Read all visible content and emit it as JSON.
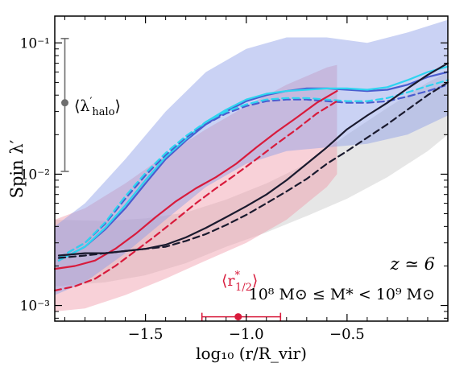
{
  "chart_data": {
    "type": "line",
    "ylabel": "Spin λ′",
    "xlabel": "log₁₀ (r/R_vir)",
    "y_scale": "log",
    "xlim": [
      -1.95,
      0.0
    ],
    "ylim": [
      0.00076,
      0.16
    ],
    "x_ticks": [
      -1.5,
      -1.0,
      -0.5
    ],
    "x_tick_labels": [
      "−1.5",
      "−1.0",
      "−0.5"
    ],
    "y_ticks": [
      0.001,
      0.01,
      0.1
    ],
    "y_tick_labels": [
      "10⁻³",
      "10⁻²",
      "10⁻¹"
    ],
    "grid": false,
    "colors": {
      "blue": "#4a5ccf",
      "cyan": "#2ed4f0",
      "red": "#d81b3c",
      "black": "#1a1a2e",
      "blue_band": "#8a9be6",
      "red_band": "#f09aa8",
      "gray_band": "#c8c8c8",
      "marker_gray": "#6e6e6e"
    },
    "bands": [
      {
        "color_key": "gray_band",
        "x": [
          -1.95,
          -1.7,
          -1.5,
          -1.3,
          -1.1,
          -0.9,
          -0.7,
          -0.5,
          -0.3,
          -0.1,
          0.0
        ],
        "lower": [
          0.0014,
          0.0015,
          0.0017,
          0.0021,
          0.0028,
          0.0036,
          0.0048,
          0.0065,
          0.0095,
          0.015,
          0.02
        ],
        "upper": [
          0.0045,
          0.0044,
          0.0046,
          0.0051,
          0.0064,
          0.0085,
          0.012,
          0.02,
          0.032,
          0.05,
          0.06
        ]
      },
      {
        "color_key": "red_band",
        "x": [
          -1.95,
          -1.8,
          -1.6,
          -1.4,
          -1.2,
          -1.0,
          -0.8,
          -0.6,
          -0.55
        ],
        "lower": [
          0.0009,
          0.00095,
          0.0012,
          0.0016,
          0.0022,
          0.003,
          0.0045,
          0.008,
          0.01
        ],
        "upper": [
          0.0045,
          0.0055,
          0.0085,
          0.014,
          0.022,
          0.033,
          0.048,
          0.065,
          0.068
        ]
      },
      {
        "color_key": "blue_band",
        "x": [
          -1.95,
          -1.8,
          -1.6,
          -1.4,
          -1.2,
          -1.0,
          -0.8,
          -0.6,
          -0.4,
          -0.2,
          0.0
        ],
        "lower": [
          0.0012,
          0.0015,
          0.0025,
          0.0045,
          0.008,
          0.012,
          0.015,
          0.016,
          0.017,
          0.02,
          0.028
        ],
        "upper": [
          0.004,
          0.006,
          0.013,
          0.03,
          0.06,
          0.09,
          0.11,
          0.11,
          0.1,
          0.12,
          0.15
        ]
      }
    ],
    "series": [
      {
        "color_key": "blue",
        "dash": "solid",
        "x": [
          -1.93,
          -1.8,
          -1.7,
          -1.6,
          -1.5,
          -1.4,
          -1.3,
          -1.2,
          -1.1,
          -1.0,
          -0.9,
          -0.8,
          -0.7,
          -0.6,
          -0.5,
          -0.4,
          -0.3,
          -0.2,
          -0.1,
          0.0
        ],
        "y": [
          0.0022,
          0.0028,
          0.0038,
          0.0055,
          0.0085,
          0.013,
          0.018,
          0.024,
          0.03,
          0.036,
          0.04,
          0.043,
          0.045,
          0.045,
          0.044,
          0.043,
          0.044,
          0.048,
          0.055,
          0.06
        ]
      },
      {
        "color_key": "cyan",
        "dash": "solid",
        "x": [
          -1.93,
          -1.8,
          -1.7,
          -1.6,
          -1.5,
          -1.4,
          -1.3,
          -1.2,
          -1.1,
          -1.0,
          -0.9,
          -0.8,
          -0.7,
          -0.6,
          -0.5,
          -0.4,
          -0.3,
          -0.2,
          -0.1,
          0.0
        ],
        "y": [
          0.0022,
          0.0028,
          0.0039,
          0.0058,
          0.009,
          0.0135,
          0.0185,
          0.025,
          0.031,
          0.037,
          0.041,
          0.043,
          0.044,
          0.045,
          0.045,
          0.044,
          0.046,
          0.052,
          0.06,
          0.066
        ]
      },
      {
        "color_key": "blue",
        "dash": "dashed",
        "x": [
          -1.93,
          -1.8,
          -1.7,
          -1.6,
          -1.5,
          -1.4,
          -1.3,
          -1.2,
          -1.1,
          -1.0,
          -0.9,
          -0.8,
          -0.7,
          -0.6,
          -0.5,
          -0.4,
          -0.3,
          -0.2,
          -0.1,
          0.0
        ],
        "y": [
          0.0023,
          0.003,
          0.0042,
          0.0065,
          0.0098,
          0.014,
          0.019,
          0.024,
          0.029,
          0.033,
          0.036,
          0.037,
          0.037,
          0.036,
          0.035,
          0.035,
          0.036,
          0.039,
          0.043,
          0.048
        ]
      },
      {
        "color_key": "cyan",
        "dash": "dashed",
        "x": [
          -1.93,
          -1.8,
          -1.7,
          -1.6,
          -1.5,
          -1.4,
          -1.3,
          -1.2,
          -1.1,
          -1.0,
          -0.9,
          -0.8,
          -0.7,
          -0.6,
          -0.5,
          -0.4,
          -0.3,
          -0.2,
          -0.1,
          0.0
        ],
        "y": [
          0.0023,
          0.003,
          0.0043,
          0.0068,
          0.0102,
          0.0145,
          0.0195,
          0.025,
          0.03,
          0.034,
          0.037,
          0.038,
          0.038,
          0.037,
          0.036,
          0.036,
          0.038,
          0.042,
          0.047,
          0.052
        ]
      },
      {
        "color_key": "red",
        "dash": "solid",
        "x": [
          -1.95,
          -1.85,
          -1.75,
          -1.65,
          -1.55,
          -1.45,
          -1.35,
          -1.25,
          -1.15,
          -1.05,
          -0.95,
          -0.85,
          -0.75,
          -0.65,
          -0.55
        ],
        "y": [
          0.0019,
          0.002,
          0.0022,
          0.0027,
          0.0035,
          0.0047,
          0.0062,
          0.0078,
          0.0095,
          0.012,
          0.016,
          0.021,
          0.027,
          0.035,
          0.043
        ]
      },
      {
        "color_key": "red",
        "dash": "dashed",
        "x": [
          -1.95,
          -1.85,
          -1.75,
          -1.65,
          -1.55,
          -1.45,
          -1.35,
          -1.25,
          -1.15,
          -1.05,
          -0.95,
          -0.85,
          -0.75,
          -0.65,
          -0.55
        ],
        "y": [
          0.0013,
          0.0014,
          0.0016,
          0.002,
          0.0026,
          0.0034,
          0.0045,
          0.006,
          0.0078,
          0.01,
          0.013,
          0.017,
          0.022,
          0.029,
          0.036
        ]
      },
      {
        "color_key": "black",
        "dash": "solid",
        "x": [
          -1.93,
          -1.8,
          -1.7,
          -1.6,
          -1.5,
          -1.4,
          -1.3,
          -1.2,
          -1.1,
          -1.0,
          -0.9,
          -0.8,
          -0.7,
          -0.6,
          -0.5,
          -0.4,
          -0.3,
          -0.2,
          -0.1,
          0.0
        ],
        "y": [
          0.0024,
          0.0025,
          0.0025,
          0.0026,
          0.0027,
          0.0029,
          0.0033,
          0.0039,
          0.0047,
          0.0057,
          0.007,
          0.009,
          0.012,
          0.016,
          0.022,
          0.028,
          0.035,
          0.045,
          0.057,
          0.07
        ]
      },
      {
        "color_key": "black",
        "dash": "dashed",
        "x": [
          -1.93,
          -1.8,
          -1.7,
          -1.6,
          -1.5,
          -1.4,
          -1.3,
          -1.2,
          -1.1,
          -1.0,
          -0.9,
          -0.8,
          -0.7,
          -0.6,
          -0.5,
          -0.4,
          -0.3,
          -0.2,
          -0.1,
          0.0
        ],
        "y": [
          0.0023,
          0.0024,
          0.0025,
          0.0026,
          0.0027,
          0.0028,
          0.0031,
          0.0035,
          0.0041,
          0.0049,
          0.006,
          0.0074,
          0.0092,
          0.012,
          0.015,
          0.019,
          0.024,
          0.031,
          0.04,
          0.05
        ]
      }
    ],
    "halo_marker": {
      "x": -1.9,
      "y": 0.035,
      "ylow": 0.0105,
      "yhigh": 0.108,
      "label_main": "⟨λ",
      "label_prime": "′",
      "label_sub": "halo",
      "label_close": "⟩",
      "color_key": "marker_gray"
    },
    "rhalf_marker": {
      "x": -1.04,
      "y": 0.00082,
      "xlow": -1.22,
      "xhigh": -0.83,
      "label_main": "⟨r",
      "label_sup": "*",
      "label_sub": "1/2",
      "label_close": "⟩",
      "color_key": "red"
    },
    "annotations": {
      "redshift": "z ≃ 6",
      "mass_range": "10⁸ M⊙ ≤ M* < 10⁹ M⊙"
    }
  }
}
